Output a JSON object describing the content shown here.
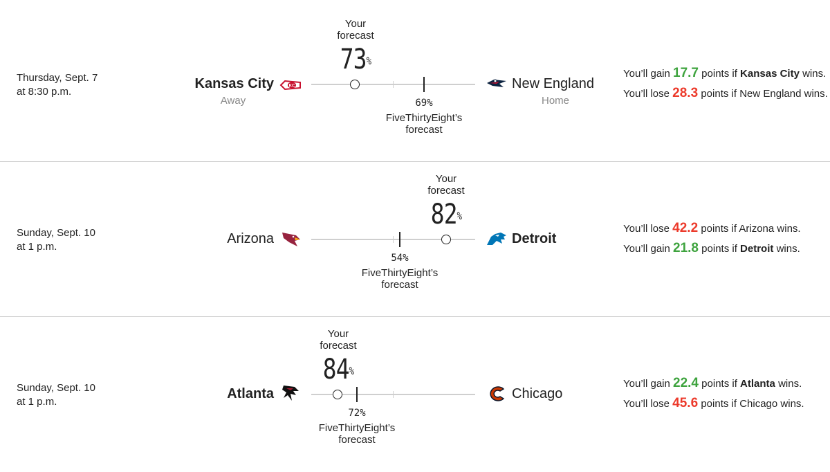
{
  "games": [
    {
      "date_line1": "Thursday, Sept. 7",
      "date_line2": "at 8:30 p.m.",
      "away_team": "Kansas City",
      "home_team": "New England",
      "away_role": "Away",
      "home_role": "Home",
      "your_label_1": "Your",
      "your_label_2": "forecast",
      "your_forecast": "73",
      "your_forecast_fraction": 0.27,
      "pct_sign": "%",
      "fte_forecast": "69%",
      "fte_forecast_fraction": 0.69,
      "fte_label_1": "FiveThirtyEight’s",
      "fte_label_2": "forecast",
      "line1": {
        "prefix": "You’ll gain",
        "points": "17.7",
        "middle": "points if",
        "team": "Kansas City",
        "suffix": "wins."
      },
      "line2": {
        "prefix": "You’ll lose",
        "points": "28.3",
        "middle": "points if",
        "team": "New England",
        "suffix": "wins."
      }
    },
    {
      "date_line1": "Sunday, Sept. 10",
      "date_line2": "at 1 p.m.",
      "away_team": "Arizona",
      "home_team": "Detroit",
      "your_label_1": "Your",
      "your_label_2": "forecast",
      "your_forecast": "82",
      "your_forecast_fraction": 0.82,
      "pct_sign": "%",
      "fte_forecast": "54%",
      "fte_forecast_fraction": 0.54,
      "fte_label_1": "FiveThirtyEight’s",
      "fte_label_2": "forecast",
      "line1": {
        "prefix": "You’ll lose",
        "points": "42.2",
        "middle": "points if",
        "team": "Arizona",
        "suffix": "wins."
      },
      "line2": {
        "prefix": "You’ll gain",
        "points": "21.8",
        "middle": "points if",
        "team": "Detroit",
        "suffix": "wins."
      }
    },
    {
      "date_line1": "Sunday, Sept. 10",
      "date_line2": "at 1 p.m.",
      "away_team": "Atlanta",
      "home_team": "Chicago",
      "your_label_1": "Your",
      "your_label_2": "forecast",
      "your_forecast": "84",
      "your_forecast_fraction": 0.16,
      "pct_sign": "%",
      "fte_forecast": "72%",
      "fte_forecast_fraction": 0.28,
      "fte_label_1": "FiveThirtyEight’s",
      "fte_label_2": "forecast",
      "line1": {
        "prefix": "You’ll gain",
        "points": "22.4",
        "middle": "points if",
        "team": "Atlanta",
        "suffix": "wins."
      },
      "line2": {
        "prefix": "You’ll lose",
        "points": "45.6",
        "middle": "points if",
        "team": "Chicago",
        "suffix": "wins."
      }
    }
  ],
  "colors": {
    "gain": "#3ea33e",
    "lose": "#ec3a2b",
    "divider": "#cfcfcf"
  }
}
